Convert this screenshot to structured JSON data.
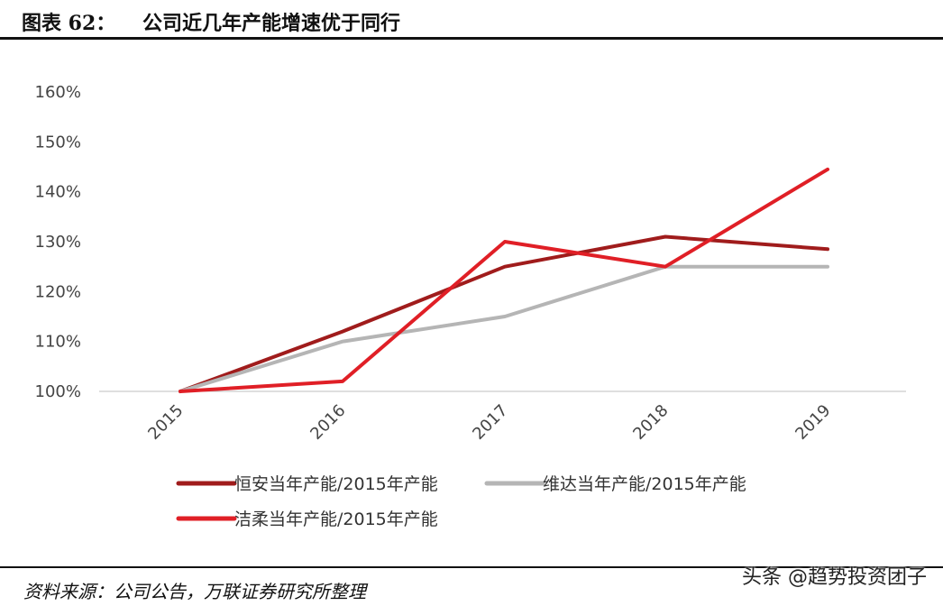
{
  "header": {
    "label": "图表 62：",
    "title": "公司近几年产能增速优于同行"
  },
  "footer": {
    "source": "资料来源：公司公告，万联证券研究所整理",
    "watermark": "头条 @趋势投资团子"
  },
  "chart_data": {
    "type": "line",
    "categories": [
      "2015",
      "2016",
      "2017",
      "2018",
      "2019"
    ],
    "ylim": [
      1.0,
      1.6
    ],
    "yticks": [
      1.0,
      1.1,
      1.2,
      1.3,
      1.4,
      1.5,
      1.6
    ],
    "ytick_labels": [
      "100%",
      "110%",
      "120%",
      "130%",
      "140%",
      "150%",
      "160%"
    ],
    "grid": false,
    "legend_position": "bottom",
    "series": [
      {
        "name": "恒安当年产能/2015年产能",
        "color": "#A01C1C",
        "values": [
          1.0,
          1.12,
          1.25,
          1.31,
          1.285
        ]
      },
      {
        "name": "维达当年产能/2015年产能",
        "color": "#B5B5B5",
        "values": [
          1.0,
          1.1,
          1.15,
          1.25,
          1.25
        ]
      },
      {
        "name": "洁柔当年产能/2015年产能",
        "color": "#E01F26",
        "values": [
          1.0,
          1.02,
          1.3,
          1.25,
          1.445
        ]
      }
    ]
  }
}
